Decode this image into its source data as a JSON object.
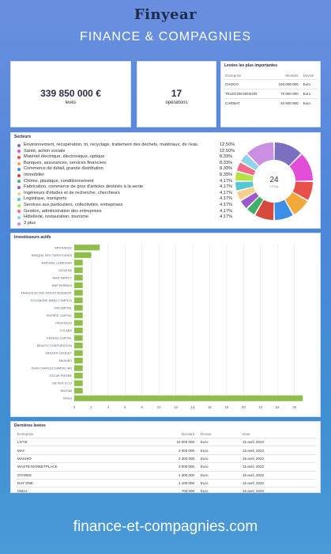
{
  "header": {
    "logo": "Finyear",
    "title": "FINANCE & COMPAGNIES"
  },
  "kpis": [
    {
      "value": "339 850 000 €",
      "label": "levés"
    },
    {
      "value": "17",
      "label": "opérations"
    }
  ],
  "top_raises": {
    "title": "Levées les plus importantes",
    "headers": [
      "Entreprise",
      "Montant",
      "Devise"
    ],
    "rows": [
      [
        "CHOCO",
        "103 000 000",
        "Euro"
      ],
      [
        "TELECOM DESIGN",
        "70 000 000",
        "Euro"
      ],
      [
        "CARMAT",
        "40 500 000",
        "Euro"
      ]
    ]
  },
  "sectors": {
    "title": "Secteurs",
    "donut_total": "24",
    "donut_label": "TOTAL",
    "items": [
      {
        "name": "Environnement, récupération, tri, recyclage, traitement des déchets, matériaux, de l'eau",
        "pct": "12,50%",
        "value": 3,
        "color": "#7b6fbf"
      },
      {
        "name": "Santé, action sociale",
        "pct": "12,50%",
        "value": 3,
        "color": "#e14fd8"
      },
      {
        "name": "Matériel électrique, électronique, optique",
        "pct": "8,33%",
        "value": 2,
        "color": "#e8514a"
      },
      {
        "name": "Banques, assurances, services financiers",
        "pct": "8,33%",
        "value": 2,
        "color": "#f2a93b"
      },
      {
        "name": "Commerce de détail, grande distribution",
        "pct": "8,33%",
        "value": 2,
        "color": "#3b8fe8"
      },
      {
        "name": "Immobilier",
        "pct": "8,33%",
        "value": 2,
        "color": "#d6493f"
      },
      {
        "name": "Chimie, plastique, conditionnement",
        "pct": "4,17%",
        "value": 1,
        "color": "#41b06b"
      },
      {
        "name": "Fabrication, commerce de gros d'articles destinés à la vente",
        "pct": "4,17%",
        "value": 1,
        "color": "#9b59c9"
      },
      {
        "name": "Ingénieurs d'études et de recherche, chercheurs",
        "pct": "4,17%",
        "value": 1,
        "color": "#f5d08a"
      },
      {
        "name": "Logistique, transports",
        "pct": "4,17%",
        "value": 1,
        "color": "#58c7d4"
      },
      {
        "name": "Services aux particuliers, collectivités, entreprises",
        "pct": "4,17%",
        "value": 1,
        "color": "#b6e04a"
      },
      {
        "name": "Gestion, administration des entreprises",
        "pct": "4,17%",
        "value": 1,
        "color": "#f26a8a"
      },
      {
        "name": "Hôtellerie, restauration, tourisme",
        "pct": "4,17%",
        "value": 1,
        "color": "#8fd3e8"
      },
      {
        "name": "3 plus",
        "pct": "",
        "value": 3,
        "color": "#c98fe0"
      }
    ]
  },
  "investors": {
    "title": "Investisseurs actifs",
    "bar_color": "#8fbf4a"
  },
  "chart_data": {
    "type": "bar",
    "orientation": "horizontal",
    "title": "Investisseurs actifs",
    "categories": [
      "BPIFRANCE",
      "BANQUE DES TERRITOIRES",
      "RAPHAEL LEMEGUIN",
      "MOVENS",
      "MAIF IMPACT",
      "BNP PARIBAS",
      "FRANCE ACTIVE INVESTISSEMENT",
      "SYCOMORE IMPACT EMPLOI",
      "SWICAPITAL",
      "ENTRÉE CAPITAL",
      "PROFTECH",
      "EYLABS",
      "KASSAS CAPITAL",
      "BEAUTY CORPORATION",
      "VINCENT HUGUET",
      "MASHED",
      "JEAN CHARLES SAMUELIAN",
      "OSCAR PIERRE",
      "METIER & CO",
      "BACKMI",
      "Others"
    ],
    "values": [
      3,
      2,
      1,
      1,
      1,
      1,
      1,
      1,
      1,
      1,
      1,
      1,
      1,
      1,
      1,
      1,
      1,
      1,
      1,
      1,
      27
    ],
    "xlim": [
      0,
      28
    ],
    "xticks": [
      0,
      2,
      4,
      6,
      8,
      10,
      12,
      14,
      16,
      18,
      20,
      22,
      24,
      26
    ],
    "grid": true
  },
  "recent_raises": {
    "title": "Dernières levées",
    "headers": [
      "Entreprise",
      "Montant",
      "Devise",
      "Date"
    ],
    "rows": [
      [
        "LIVYE",
        "10 000 000",
        "Euro",
        "15 avril, 2022"
      ],
      [
        "MAY",
        "3 000 000",
        "Euro",
        "15 avril, 2022"
      ],
      [
        "MASHIO",
        "2 300 000",
        "Euro",
        "15 avril, 2022"
      ],
      [
        "WASTE MARKETPLACE",
        "2 000 000",
        "Euro",
        "15 avril, 2022"
      ],
      [
        "OTAREE",
        "1 300 000",
        "Euro",
        "15 avril, 2022"
      ],
      [
        "DAY ONE",
        "1 100 000",
        "Euro",
        "15 avril, 2022"
      ],
      [
        "OMAJ",
        "700 000",
        "Euro",
        "15 avril, 2022"
      ]
    ]
  },
  "footer": {
    "url": "finance-et-compagnies.com"
  }
}
